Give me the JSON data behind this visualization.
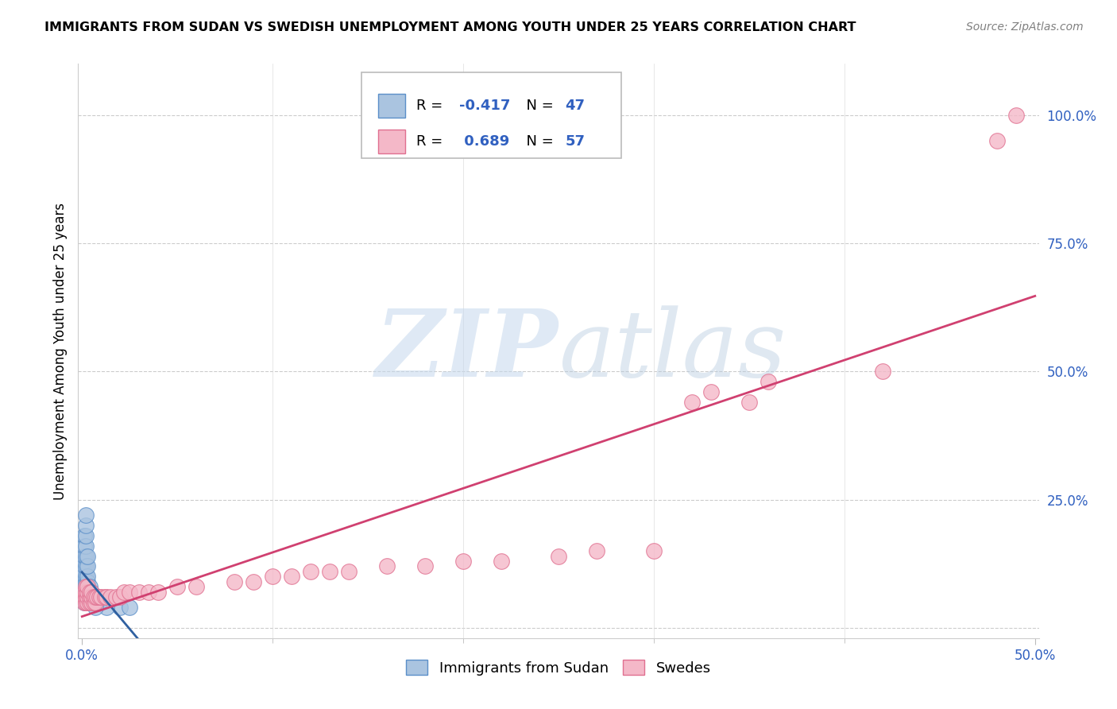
{
  "title": "IMMIGRANTS FROM SUDAN VS SWEDISH UNEMPLOYMENT AMONG YOUTH UNDER 25 YEARS CORRELATION CHART",
  "source": "Source: ZipAtlas.com",
  "ylabel": "Unemployment Among Youth under 25 years",
  "yticks_vals": [
    0.0,
    0.25,
    0.5,
    0.75,
    1.0
  ],
  "yticks_labels": [
    "",
    "25.0%",
    "50.0%",
    "75.0%",
    "100.0%"
  ],
  "xtick_left_label": "0.0%",
  "xtick_right_label": "50.0%",
  "legend_label_blue": "Immigrants from Sudan",
  "legend_label_pink": "Swedes",
  "blue_color": "#aac4e0",
  "pink_color": "#f4b8c8",
  "blue_edge_color": "#5b8fc9",
  "pink_edge_color": "#e07090",
  "blue_line_color": "#3060a0",
  "pink_line_color": "#d04070",
  "r_value_color": "#3060c0",
  "watermark_color": "#c8d8e8",
  "blue_scatter": [
    [
      0.001,
      0.05
    ],
    [
      0.001,
      0.06
    ],
    [
      0.001,
      0.07
    ],
    [
      0.001,
      0.08
    ],
    [
      0.001,
      0.09
    ],
    [
      0.001,
      0.1
    ],
    [
      0.001,
      0.11
    ],
    [
      0.001,
      0.12
    ],
    [
      0.001,
      0.13
    ],
    [
      0.001,
      0.14
    ],
    [
      0.001,
      0.16
    ],
    [
      0.001,
      0.18
    ],
    [
      0.002,
      0.05
    ],
    [
      0.002,
      0.06
    ],
    [
      0.002,
      0.07
    ],
    [
      0.002,
      0.08
    ],
    [
      0.002,
      0.09
    ],
    [
      0.002,
      0.1
    ],
    [
      0.002,
      0.12
    ],
    [
      0.002,
      0.14
    ],
    [
      0.002,
      0.16
    ],
    [
      0.002,
      0.18
    ],
    [
      0.002,
      0.2
    ],
    [
      0.002,
      0.22
    ],
    [
      0.003,
      0.05
    ],
    [
      0.003,
      0.06
    ],
    [
      0.003,
      0.07
    ],
    [
      0.003,
      0.08
    ],
    [
      0.003,
      0.09
    ],
    [
      0.003,
      0.1
    ],
    [
      0.003,
      0.12
    ],
    [
      0.003,
      0.14
    ],
    [
      0.004,
      0.05
    ],
    [
      0.004,
      0.06
    ],
    [
      0.004,
      0.07
    ],
    [
      0.004,
      0.08
    ],
    [
      0.005,
      0.05
    ],
    [
      0.005,
      0.06
    ],
    [
      0.005,
      0.07
    ],
    [
      0.006,
      0.05
    ],
    [
      0.006,
      0.06
    ],
    [
      0.008,
      0.05
    ],
    [
      0.009,
      0.05
    ],
    [
      0.02,
      0.04
    ],
    [
      0.025,
      0.04
    ],
    [
      0.013,
      0.04
    ],
    [
      0.007,
      0.04
    ]
  ],
  "pink_scatter": [
    [
      0.001,
      0.05
    ],
    [
      0.001,
      0.06
    ],
    [
      0.001,
      0.07
    ],
    [
      0.002,
      0.05
    ],
    [
      0.002,
      0.06
    ],
    [
      0.002,
      0.07
    ],
    [
      0.002,
      0.08
    ],
    [
      0.003,
      0.05
    ],
    [
      0.003,
      0.06
    ],
    [
      0.003,
      0.07
    ],
    [
      0.003,
      0.08
    ],
    [
      0.004,
      0.05
    ],
    [
      0.004,
      0.06
    ],
    [
      0.004,
      0.07
    ],
    [
      0.005,
      0.05
    ],
    [
      0.005,
      0.06
    ],
    [
      0.005,
      0.07
    ],
    [
      0.006,
      0.05
    ],
    [
      0.006,
      0.06
    ],
    [
      0.007,
      0.05
    ],
    [
      0.007,
      0.06
    ],
    [
      0.008,
      0.06
    ],
    [
      0.009,
      0.06
    ],
    [
      0.01,
      0.06
    ],
    [
      0.012,
      0.06
    ],
    [
      0.013,
      0.06
    ],
    [
      0.015,
      0.06
    ],
    [
      0.018,
      0.06
    ],
    [
      0.02,
      0.06
    ],
    [
      0.022,
      0.07
    ],
    [
      0.025,
      0.07
    ],
    [
      0.03,
      0.07
    ],
    [
      0.035,
      0.07
    ],
    [
      0.04,
      0.07
    ],
    [
      0.05,
      0.08
    ],
    [
      0.06,
      0.08
    ],
    [
      0.08,
      0.09
    ],
    [
      0.09,
      0.09
    ],
    [
      0.1,
      0.1
    ],
    [
      0.11,
      0.1
    ],
    [
      0.12,
      0.11
    ],
    [
      0.13,
      0.11
    ],
    [
      0.14,
      0.11
    ],
    [
      0.16,
      0.12
    ],
    [
      0.18,
      0.12
    ],
    [
      0.2,
      0.13
    ],
    [
      0.22,
      0.13
    ],
    [
      0.25,
      0.14
    ],
    [
      0.27,
      0.15
    ],
    [
      0.3,
      0.15
    ],
    [
      0.32,
      0.44
    ],
    [
      0.33,
      0.46
    ],
    [
      0.35,
      0.44
    ],
    [
      0.36,
      0.48
    ],
    [
      0.42,
      0.5
    ],
    [
      0.49,
      1.0
    ],
    [
      0.48,
      0.95
    ]
  ],
  "xlim": [
    -0.002,
    0.502
  ],
  "ylim": [
    -0.02,
    1.1
  ]
}
